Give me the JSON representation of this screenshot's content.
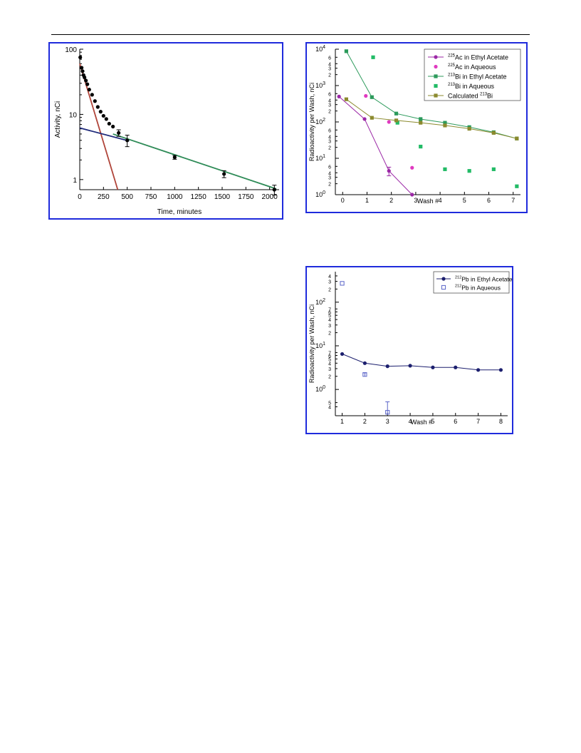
{
  "chart_data": [
    {
      "type": "scatter",
      "xlabel": "Time, minutes",
      "ylabel": "Activity, nCi",
      "yscale": "log",
      "xlim": [
        0,
        2100
      ],
      "ylim": [
        0.7,
        100
      ],
      "x_ticks": [
        "0",
        "250",
        "500",
        "750",
        "1000",
        "1250",
        "1500",
        "1750",
        "2000"
      ],
      "y_ticks": [
        "1",
        "10",
        "100"
      ],
      "grid": false,
      "series": [
        {
          "marker": "filled-circle",
          "color": "#000000",
          "x": [
            5,
            20,
            30,
            40,
            50,
            65,
            80,
            100,
            130,
            160,
            190,
            220,
            250,
            280,
            310,
            350,
            410,
            500,
            1000,
            1520,
            2050
          ],
          "y": [
            75,
            52,
            46,
            40,
            37,
            33,
            29,
            24,
            20,
            16,
            13,
            11,
            9.5,
            8.5,
            7.2,
            6.5,
            5.2,
            4.0,
            2.2,
            1.22,
            0.7
          ],
          "error": [
            null,
            null,
            null,
            null,
            null,
            null,
            null,
            null,
            null,
            null,
            null,
            null,
            null,
            null,
            null,
            null,
            0.6,
            0.8,
            0.15,
            0.15,
            0.12
          ]
        },
        {
          "line": "fit",
          "color": "#b0453a",
          "x": [
            0,
            400
          ],
          "y": [
            60,
            0.7
          ]
        },
        {
          "line": "fit",
          "color": "#1f2a7a",
          "x": [
            0,
            520
          ],
          "y": [
            6.2,
            3.9
          ]
        },
        {
          "line": "fit",
          "color": "#2e8b57",
          "x": [
            350,
            2070
          ],
          "y": [
            5.0,
            0.72
          ]
        }
      ]
    },
    {
      "type": "scatter",
      "xlabel": "Wash #",
      "ylabel": "Radioactivity per Wash, nCi",
      "yscale": "log",
      "xlim": [
        -0.3,
        7.3
      ],
      "ylim": [
        1,
        10000
      ],
      "x_ticks": [
        "0",
        "1",
        "2",
        "3",
        "4",
        "5",
        "6",
        "7"
      ],
      "legend_position": "top-right",
      "series": [
        {
          "name_iso": "225",
          "name_rest": "Ac in Ethyl Acetate",
          "color": "#9b27a6",
          "marker": "circle",
          "line": true,
          "x": [
            -0.15,
            0.9,
            1.9,
            2.85
          ],
          "y": [
            500,
            120,
            4.5,
            1.0
          ],
          "error": [
            null,
            null,
            1.2,
            null
          ]
        },
        {
          "name_iso": "225",
          "name_rest": "Ac in Aqueous",
          "color": "#e03ac0",
          "marker": "circle",
          "line": false,
          "x": [
            0.95,
            1.9,
            2.85
          ],
          "y": [
            520,
            100,
            5.5
          ],
          "error": [
            null,
            null,
            null
          ]
        },
        {
          "name_iso": "213",
          "name_rest": "Bi in Ethyl Acetate",
          "color": "#2c9a5b",
          "marker": "square",
          "line": true,
          "x": [
            0.15,
            1.2,
            2.2,
            3.2,
            4.2,
            5.2,
            6.2,
            7.15
          ],
          "y": [
            8800,
            480,
            170,
            120,
            95,
            72,
            52,
            35
          ]
        },
        {
          "name_iso": "213",
          "name_rest": "Bi in Aqueous",
          "color": "#22bb66",
          "marker": "square",
          "line": false,
          "x": [
            1.25,
            2.25,
            3.2,
            4.2,
            5.2,
            6.2,
            7.15
          ],
          "y": [
            6000,
            95,
            21,
            5,
            4.5,
            5,
            1.7
          ]
        },
        {
          "name_iso": "",
          "name_rest": "Calculated ",
          "name_suffix_iso": "213",
          "name_suffix": "Bi",
          "color": "#8b8a2e",
          "marker": "square",
          "line": true,
          "x": [
            0.15,
            1.2,
            2.2,
            3.2,
            4.2,
            5.2,
            6.2,
            7.15
          ],
          "y": [
            420,
            130,
            110,
            95,
            80,
            65,
            50,
            35
          ]
        }
      ]
    },
    {
      "type": "scatter",
      "xlabel": "Wash #",
      "ylabel": "Radioactivity per Wash, nCi",
      "yscale": "log",
      "xlim": [
        0.7,
        8.3
      ],
      "ylim": [
        0.25,
        500
      ],
      "x_ticks": [
        "1",
        "2",
        "3",
        "4",
        "5",
        "6",
        "7",
        "8"
      ],
      "legend_position": "top-right",
      "series": [
        {
          "name_iso": "212",
          "name_rest": "Pb in Ethyl Acetate",
          "color": "#1c1f6e",
          "marker": "circle",
          "line": true,
          "x": [
            1,
            2,
            3,
            4,
            5,
            6,
            7,
            8
          ],
          "y": [
            6.5,
            4.0,
            3.4,
            3.5,
            3.2,
            3.2,
            2.8,
            2.8
          ]
        },
        {
          "name_iso": "212",
          "name_rest": "Pb in Aqueous",
          "color": "#5a64c8",
          "marker": "open-square",
          "line": false,
          "x": [
            1,
            2,
            3
          ],
          "y": [
            270,
            2.2,
            0.3
          ],
          "error": [
            null,
            0.2,
            0.22
          ]
        }
      ]
    }
  ]
}
